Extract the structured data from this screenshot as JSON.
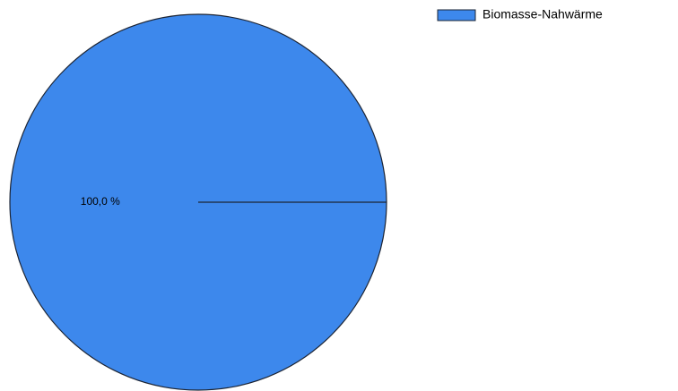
{
  "chart_data": {
    "type": "pie",
    "categories": [
      "Biomasse-Nahwärme"
    ],
    "values": [
      100
    ],
    "value_labels": [
      "100,0 %"
    ],
    "colors": [
      "#3d88ec"
    ]
  }
}
